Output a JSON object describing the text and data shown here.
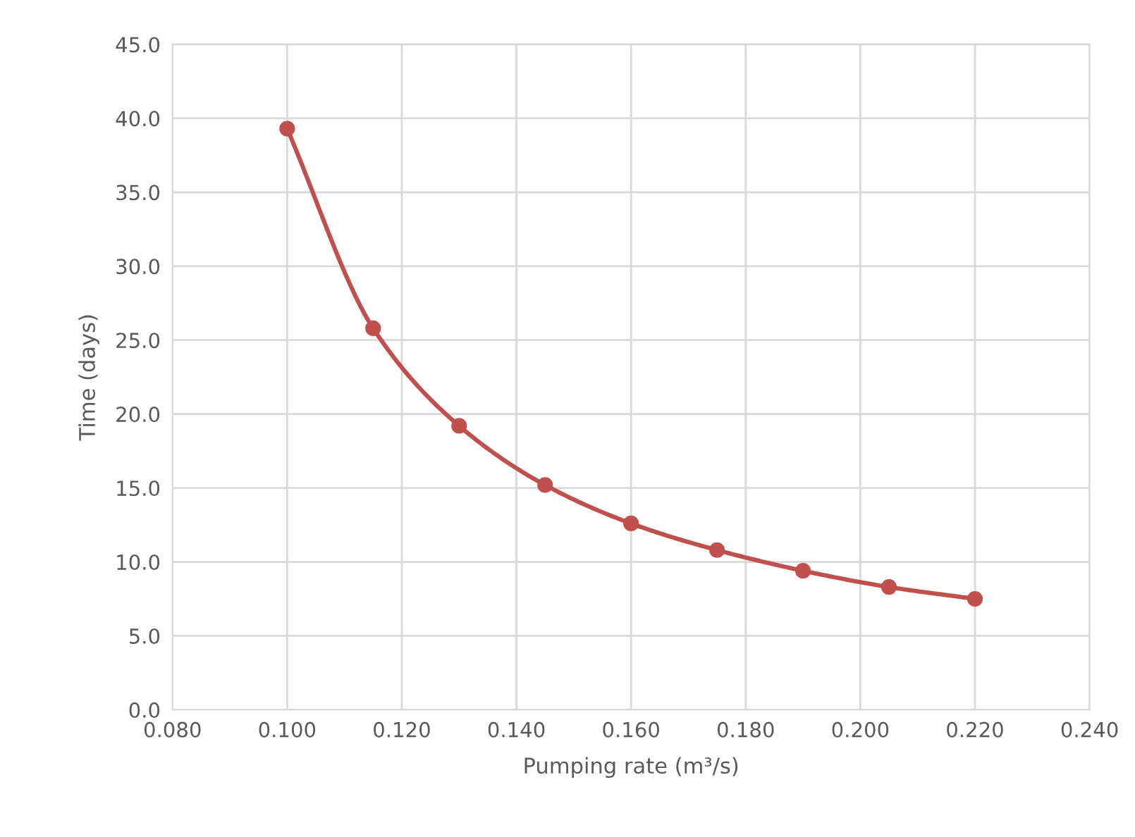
{
  "chart_data": {
    "type": "line",
    "xlabel": "Pumping rate (m³/s)",
    "ylabel": "Time (days)",
    "x": [
      0.1,
      0.115,
      0.13,
      0.145,
      0.16,
      0.175,
      0.19,
      0.205,
      0.22
    ],
    "series": [
      {
        "color": "#c0504d",
        "values": [
          39.3,
          25.8,
          19.2,
          15.2,
          12.6,
          10.8,
          9.4,
          8.3,
          7.5
        ]
      }
    ],
    "xlim": [
      0.08,
      0.24
    ],
    "xticks": [
      {
        "value": 0.08,
        "label": "0.080"
      },
      {
        "value": 0.1,
        "label": "0.100"
      },
      {
        "value": 0.12,
        "label": "0.120"
      },
      {
        "value": 0.14,
        "label": "0.140"
      },
      {
        "value": 0.16,
        "label": "0.160"
      },
      {
        "value": 0.18,
        "label": "0.180"
      },
      {
        "value": 0.2,
        "label": "0.200"
      },
      {
        "value": 0.22,
        "label": "0.220"
      },
      {
        "value": 0.24,
        "label": "0.240"
      }
    ],
    "ylim": [
      0,
      45
    ],
    "yticks": [
      {
        "value": 0,
        "label": "0.0"
      },
      {
        "value": 5,
        "label": "5.0"
      },
      {
        "value": 10,
        "label": "10.0"
      },
      {
        "value": 15,
        "label": "15.0"
      },
      {
        "value": 20,
        "label": "20.0"
      },
      {
        "value": 25,
        "label": "25.0"
      },
      {
        "value": 30,
        "label": "30.0"
      },
      {
        "value": 35,
        "label": "35.0"
      },
      {
        "value": 40,
        "label": "40.0"
      },
      {
        "value": 45,
        "label": "45.0"
      }
    ],
    "grid": true,
    "marker": "circle",
    "line_style": "solid"
  }
}
